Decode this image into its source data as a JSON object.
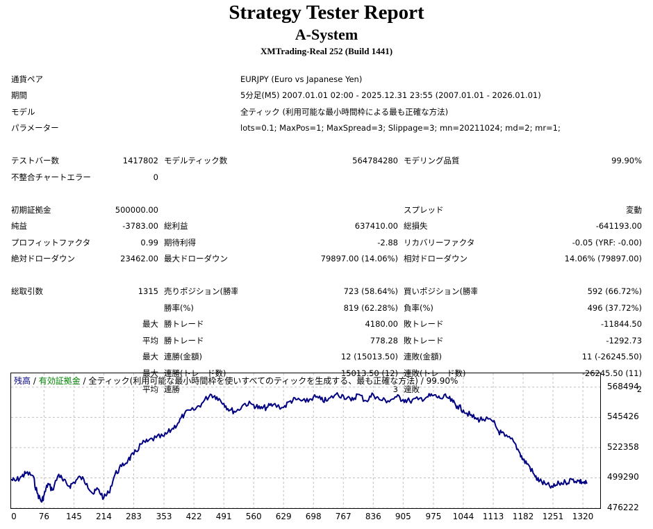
{
  "header": {
    "title": "Strategy Tester Report",
    "ea_name": "A-System",
    "server": "XMTrading-Real 252 (Build 1441)"
  },
  "info": {
    "symbol_label": "通貨ペア",
    "symbol": "EURJPY (Euro vs Japanese Yen)",
    "period_label": "期間",
    "period": "5分足(M5) 2007.01.01 02:00 - 2025.12.31 23:55 (2007.01.01 - 2026.01.01)",
    "model_label": "モデル",
    "model": "全ティック (利用可能な最小時間枠による最も正確な方法)",
    "params_label": "パラメーター",
    "params": "lots=0.1; MaxPos=1; MaxSpread=3; Slippage=3; mn=20211024; md=2; mr=1;"
  },
  "stats": {
    "bars_label": "テストバー数",
    "bars": "1417802",
    "ticks_label": "モデルティック数",
    "ticks": "564784280",
    "quality_label": "モデリング品質",
    "quality": "99.90%",
    "mismatch_label": "不整合チャートエラー",
    "mismatch": "0",
    "deposit_label": "初期証拠金",
    "deposit": "500000.00",
    "spread_label": "スプレッド",
    "spread": "変動",
    "net_label": "純益",
    "net": "-3783.00",
    "gross_profit_label": "総利益",
    "gross_profit": "637410.00",
    "gross_loss_label": "総損失",
    "gross_loss": "-641193.00",
    "pf_label": "プロフィットファクタ",
    "pf": "0.99",
    "expected_label": "期待利得",
    "expected": "-2.88",
    "recovery_label": "リカバリーファクタ",
    "recovery": "-0.05 (YRF: -0.00)",
    "abs_dd_label": "絶対ドローダウン",
    "abs_dd": "23462.00",
    "max_dd_label": "最大ドローダウン",
    "max_dd": "79897.00 (14.06%)",
    "rel_dd_label": "相対ドローダウン",
    "rel_dd": "14.06% (79897.00)",
    "total_label": "総取引数",
    "total": "1315",
    "short_label": "売りポジション(勝率%)",
    "short": "723 (58.64%)",
    "long_label": "買いポジション(勝率%)",
    "long": "592 (66.72%)",
    "win_label": "勝率(%)",
    "win": "819 (62.28%)",
    "loss_label": "負率(%)",
    "loss": "496 (37.72%)",
    "max_word": "最大",
    "avg_word": "平均",
    "largest_win_label": "勝トレード",
    "largest_win": "4180.00",
    "largest_loss_label": "敗トレード",
    "largest_loss": "-11844.50",
    "avg_win_label": "勝トレード",
    "avg_win": "778.28",
    "avg_loss_label": "敗トレード",
    "avg_loss": "-1292.73",
    "cons_wins_money_label": "連勝(金額)",
    "cons_wins_money": "12 (15013.50)",
    "cons_losses_money_label": "連敗(金額)",
    "cons_losses_money": "11 (-26245.50)",
    "cons_wins_count_label": "連勝(トレード数)",
    "cons_wins_count": "15013.50 (12)",
    "cons_losses_count_label": "連敗(トレード数)",
    "cons_losses_count": "-26245.50 (11)",
    "avg_cons_wins_label": "連勝",
    "avg_cons_wins": "3",
    "avg_cons_losses_label": "連敗",
    "avg_cons_losses": "2"
  },
  "graph": {
    "legend_balance": "残高",
    "legend_sep1": " / ",
    "legend_equity": "有効証拠金",
    "legend_rest": " / 全ティック(利用可能な最小時間枠を使いすべてのティックを生成する、最も正確な方法) / 99.90%",
    "balance_color": "#000080",
    "equity_color": "#008000"
  },
  "chart_data": {
    "type": "line",
    "y_ticks": [
      "568494",
      "545426",
      "522358",
      "499290",
      "476222"
    ],
    "x_ticks": [
      "0",
      "76",
      "145",
      "214",
      "283",
      "353",
      "422",
      "491",
      "560",
      "629",
      "698",
      "767",
      "836",
      "905",
      "975",
      "1044",
      "1113",
      "1182",
      "1251",
      "1320"
    ],
    "ylim": [
      476222,
      579000
    ],
    "xlim": [
      0,
      1360
    ],
    "series": [
      {
        "x": [
          0,
          10,
          25,
          35,
          50,
          60,
          70,
          76,
          85,
          95,
          110,
          120,
          135,
          145,
          160,
          175,
          190,
          200,
          214,
          225,
          240,
          255,
          270,
          283,
          300,
          315,
          335,
          353,
          370,
          385,
          400,
          422,
          440,
          460,
          475,
          491,
          505,
          520,
          540,
          560,
          575,
          590,
          605,
          629,
          645,
          660,
          680,
          698,
          715,
          730,
          750,
          767,
          785,
          800,
          820,
          836,
          850,
          870,
          890,
          905,
          920,
          940,
          960,
          975,
          990,
          1005,
          1020,
          1030,
          1044,
          1060,
          1075,
          1090,
          1113,
          1125,
          1140,
          1160,
          1175,
          1182,
          1195,
          1210,
          1220,
          1235,
          1251,
          1265,
          1280,
          1295,
          1310,
          1320,
          1330
        ],
        "values": [
          498000,
          497000,
          500500,
          503000,
          501000,
          488000,
          481000,
          486000,
          495000,
          490000,
          502000,
          497000,
          493000,
          496000,
          500000,
          495000,
          487000,
          491000,
          484000,
          488000,
          502000,
          508000,
          513000,
          517000,
          525000,
          527000,
          530000,
          531000,
          536000,
          541000,
          548000,
          551000,
          556000,
          563000,
          561000,
          556000,
          551000,
          550000,
          556000,
          555000,
          552000,
          553000,
          555000,
          553000,
          558000,
          559000,
          557000,
          561000,
          559000,
          558000,
          563000,
          562000,
          558000,
          563000,
          558000,
          563000,
          559000,
          558000,
          561000,
          559000,
          558000,
          559000,
          561000,
          562000,
          560000,
          561000,
          557000,
          554000,
          551000,
          547000,
          544000,
          544000,
          542000,
          535000,
          531000,
          527000,
          518000,
          513000,
          509000,
          500000,
          497000,
          494000,
          492000,
          495000,
          496000,
          498000,
          497000,
          496000,
          495000
        ]
      }
    ]
  }
}
